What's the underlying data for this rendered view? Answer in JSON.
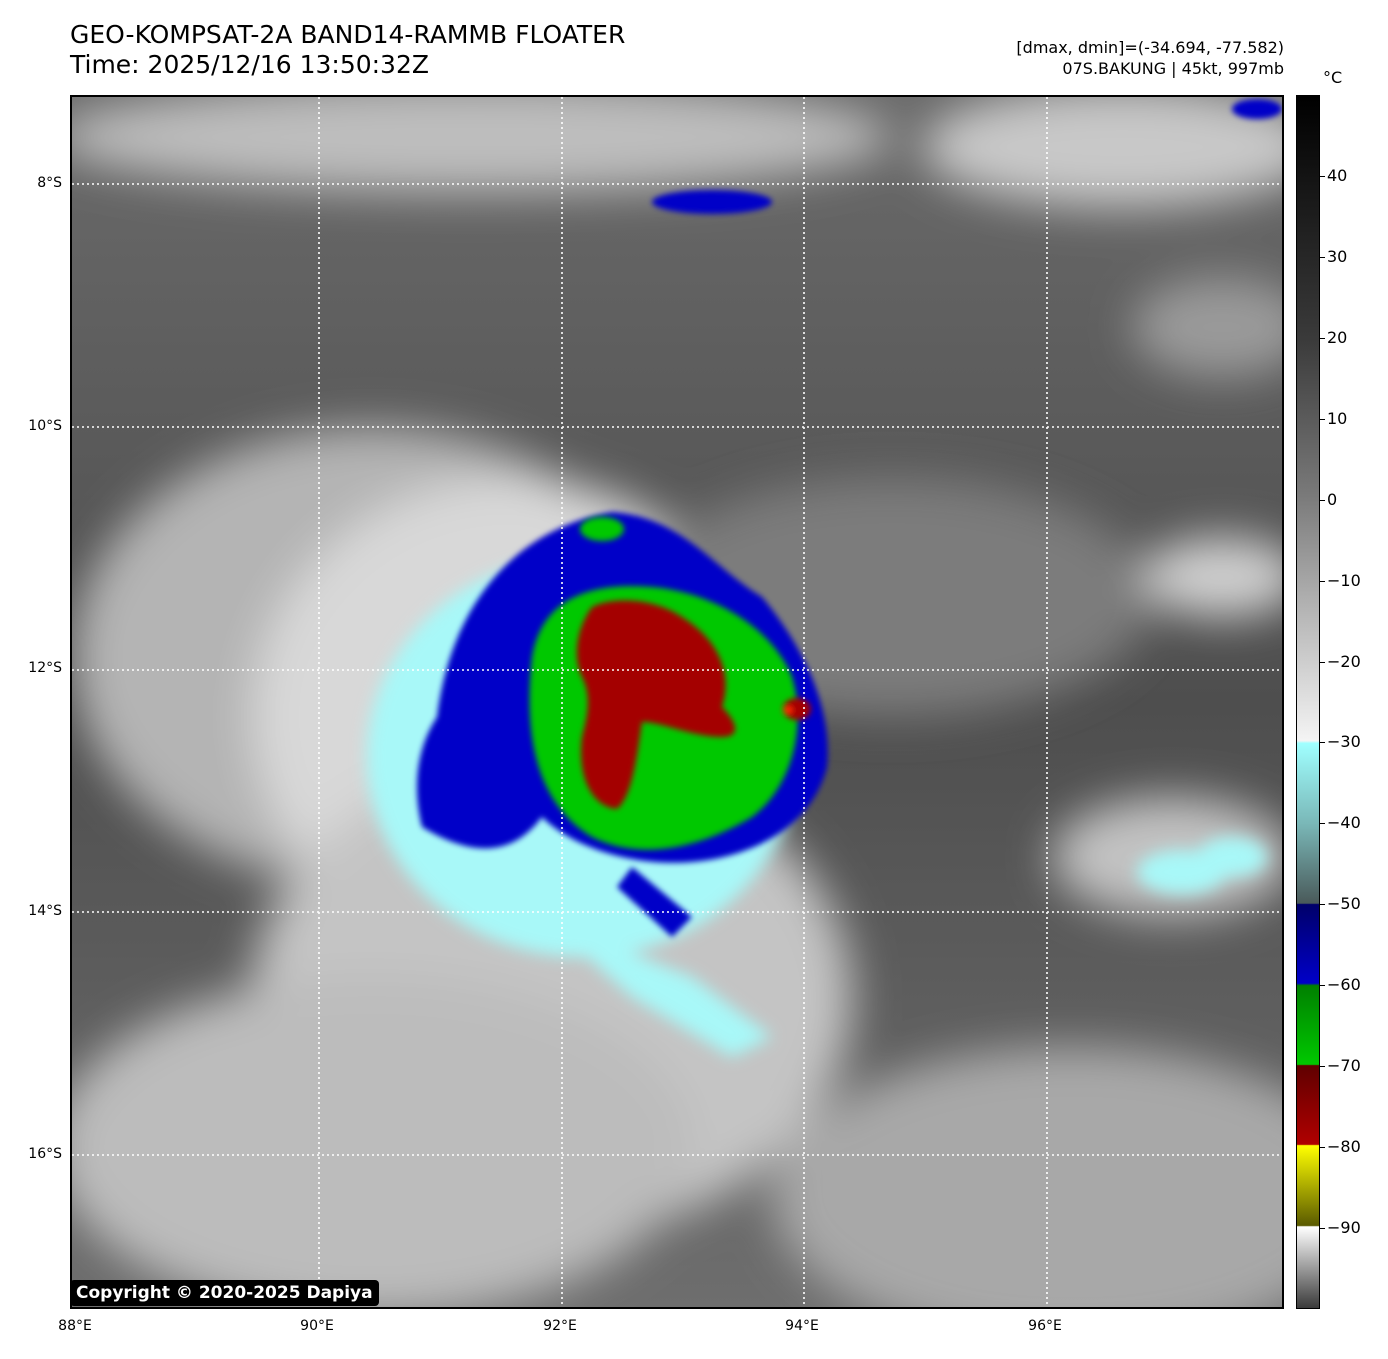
{
  "title": {
    "line1": "GEO-KOMPSAT-2A BAND14-RAMMB FLOATER",
    "line2": "Time: 2025/12/16 13:50:32Z"
  },
  "info": {
    "line1": "[dmax, dmin]=(-34.694, -77.582)",
    "line2": "07S.BAKUNG | 45kt, 997mb"
  },
  "map": {
    "lat_labels": [
      "8°S",
      "10°S",
      "12°S",
      "14°S",
      "16°S"
    ],
    "lon_labels": [
      "88°E",
      "90°E",
      "92°E",
      "94°E",
      "96°E"
    ],
    "lon_range": [
      88,
      98
    ],
    "lat_range": [
      -7.3,
      -17.3
    ],
    "grid": true,
    "storm_center": {
      "lon": 92.7,
      "lat": -12.3
    }
  },
  "colorbar": {
    "unit": "°C",
    "ticks": [
      "40",
      "30",
      "20",
      "10",
      "0",
      "−10",
      "−20",
      "−30",
      "−40",
      "−50",
      "−60",
      "−70",
      "−80",
      "−90"
    ],
    "range": [
      -100,
      50
    ],
    "colors": {
      "blue": "#0000c8",
      "green": "#00c800",
      "red": "#b00000",
      "yellow": "#ffff00",
      "cyan": "#a0ffff"
    }
  },
  "copyright": "Copyright © 2020-2025 Dapiya"
}
